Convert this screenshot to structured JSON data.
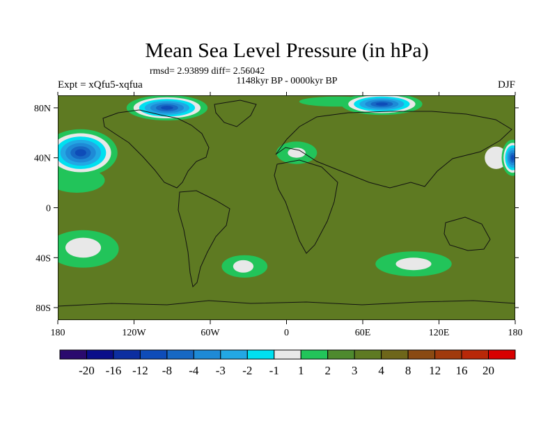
{
  "chart_data": {
    "type": "heatmap",
    "title": "Mean Sea Level Pressure (in hPa)",
    "stats": "rmsd= 2.93899 diff= 2.56042",
    "period": "1148kyr BP - 0000kyr BP",
    "experiment": "Expt = xQfu5-xqfua",
    "season": "DJF",
    "xlabel": "",
    "ylabel": "",
    "xlim": [
      -180,
      180
    ],
    "ylim": [
      -90,
      90
    ],
    "x_ticks": [
      {
        "value": -180,
        "label": "180"
      },
      {
        "value": -120,
        "label": "120W"
      },
      {
        "value": -60,
        "label": "60W"
      },
      {
        "value": 0,
        "label": "0"
      },
      {
        "value": 60,
        "label": "60E"
      },
      {
        "value": 120,
        "label": "120E"
      },
      {
        "value": 180,
        "label": "180"
      }
    ],
    "y_ticks": [
      {
        "value": 80,
        "label": "80N"
      },
      {
        "value": 40,
        "label": "40N"
      },
      {
        "value": 0,
        "label": "0"
      },
      {
        "value": -40,
        "label": "40S"
      },
      {
        "value": -80,
        "label": "80S"
      }
    ],
    "colorbar": {
      "colors": [
        "#2a0a6e",
        "#0a0e8a",
        "#0c2ea0",
        "#0e4cb8",
        "#1768c4",
        "#1e8ad6",
        "#22a8e4",
        "#00e0f0",
        "#e8e8e8",
        "#22c45a",
        "#4e8a2e",
        "#5e7a22",
        "#6e661a",
        "#8a4a12",
        "#a03a0c",
        "#b82808",
        "#d80000"
      ],
      "labels": [
        "-20",
        "-16",
        "-12",
        "-8",
        "-4",
        "-3",
        "-2",
        "-1",
        "1",
        "2",
        "3",
        "4",
        "8",
        "12",
        "16",
        "20"
      ]
    },
    "regions": [
      {
        "kind": "low",
        "lon": -162,
        "lat": 44,
        "rx": 20,
        "ry": 13
      },
      {
        "kind": "low",
        "lon": -94,
        "lat": 80,
        "rx": 22,
        "ry": 7
      },
      {
        "kind": "low",
        "lon": 75,
        "lat": 83,
        "rx": 22,
        "ry": 6
      },
      {
        "kind": "low",
        "lon": 178,
        "lat": 40,
        "rx": 6,
        "ry": 10
      },
      {
        "kind": "nearzero",
        "lon": -160,
        "lat": -32,
        "rx": 14,
        "ry": 8
      },
      {
        "kind": "nearzero",
        "lon": -34,
        "lat": -47,
        "rx": 8,
        "ry": 5
      },
      {
        "kind": "nearzero",
        "lon": 100,
        "lat": -45,
        "rx": 14,
        "ry": 5
      },
      {
        "kind": "nearzero",
        "lon": 8,
        "lat": 44,
        "rx": 7,
        "ry": 4
      },
      {
        "kind": "nearzero",
        "lon": 165,
        "lat": 40,
        "rx": 9,
        "ry": 9
      },
      {
        "kind": "positive_small",
        "lon": -160,
        "lat": -33,
        "rx": 28,
        "ry": 15
      },
      {
        "kind": "positive_small",
        "lon": -33,
        "lat": -47,
        "rx": 18,
        "ry": 9
      },
      {
        "kind": "positive_small",
        "lon": 100,
        "lat": -45,
        "rx": 30,
        "ry": 10
      },
      {
        "kind": "positive_small",
        "lon": 8,
        "lat": 44,
        "rx": 16,
        "ry": 9
      },
      {
        "kind": "positive_small",
        "lon": -165,
        "lat": 22,
        "rx": 22,
        "ry": 10
      },
      {
        "kind": "positive_small",
        "lon": 40,
        "lat": 85,
        "rx": 30,
        "ry": 4
      }
    ]
  }
}
